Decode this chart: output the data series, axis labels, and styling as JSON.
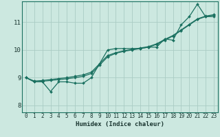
{
  "xlabel": "Humidex (Indice chaleur)",
  "bg_color": "#cce8e0",
  "grid_color": "#aaccc4",
  "line_color": "#1a7060",
  "xlim": [
    -0.5,
    23.5
  ],
  "ylim": [
    7.75,
    11.75
  ],
  "xticks": [
    0,
    1,
    2,
    3,
    4,
    5,
    6,
    7,
    8,
    9,
    10,
    11,
    12,
    13,
    14,
    15,
    16,
    17,
    18,
    19,
    20,
    21,
    22,
    23
  ],
  "yticks": [
    8,
    9,
    10,
    11
  ],
  "line_jagged_y": [
    9.0,
    8.85,
    8.85,
    8.5,
    8.85,
    8.85,
    8.8,
    8.8,
    9.0,
    9.5,
    10.0,
    10.05,
    10.05,
    10.05,
    10.05,
    10.1,
    10.1,
    10.4,
    10.35,
    10.9,
    11.2,
    11.65,
    11.2,
    11.2
  ],
  "line_smooth1_y": [
    9.0,
    8.85,
    8.87,
    8.9,
    8.93,
    8.96,
    9.0,
    9.05,
    9.15,
    9.45,
    9.75,
    9.88,
    9.95,
    10.0,
    10.05,
    10.1,
    10.2,
    10.35,
    10.5,
    10.7,
    10.9,
    11.1,
    11.2,
    11.25
  ],
  "line_smooth2_y": [
    9.0,
    8.88,
    8.9,
    8.93,
    8.97,
    9.0,
    9.05,
    9.1,
    9.2,
    9.5,
    9.8,
    9.9,
    9.97,
    10.02,
    10.07,
    10.12,
    10.22,
    10.38,
    10.52,
    10.72,
    10.92,
    11.12,
    11.22,
    11.27
  ]
}
